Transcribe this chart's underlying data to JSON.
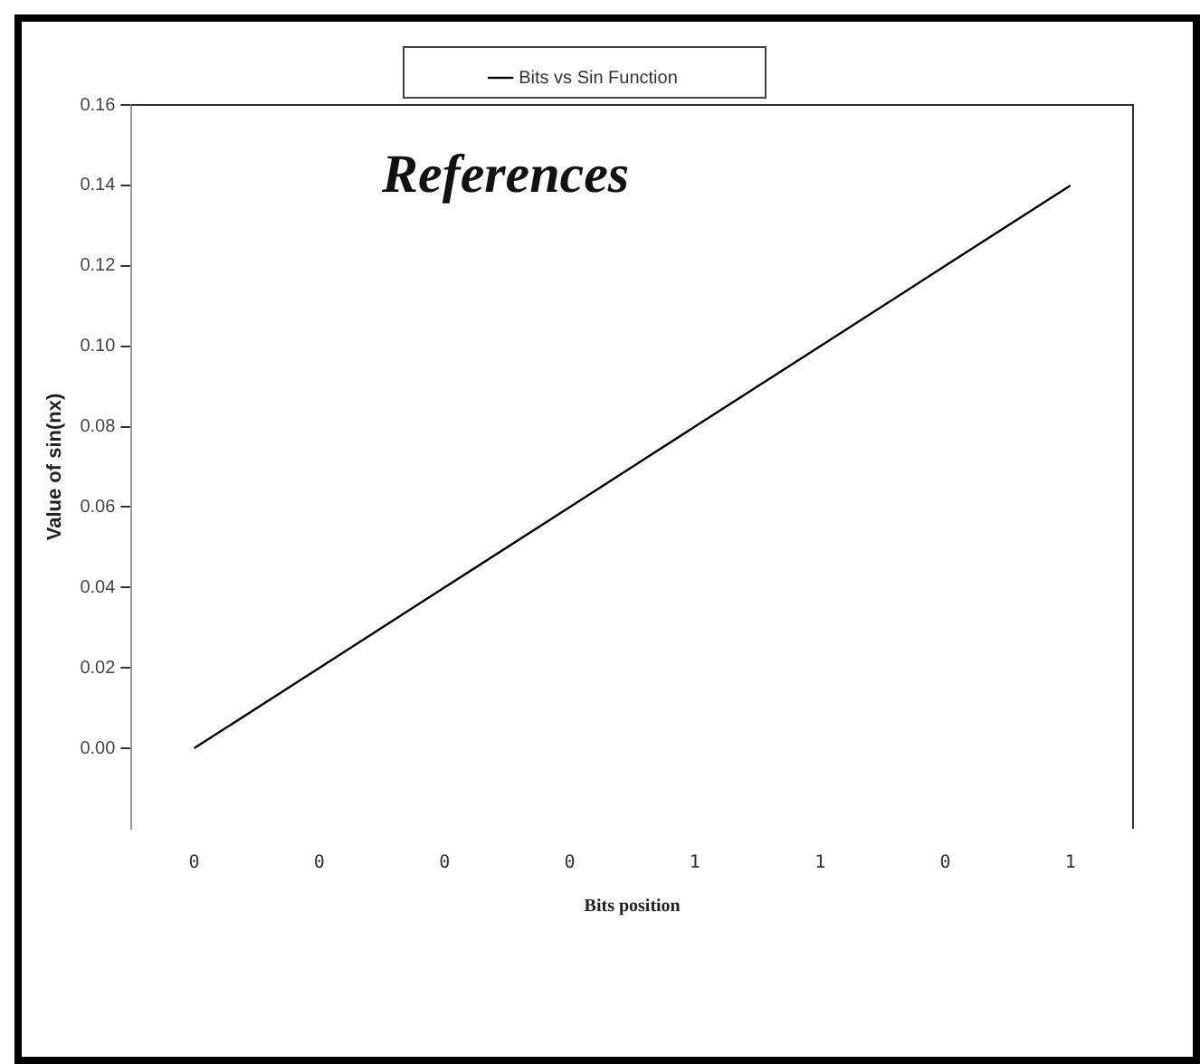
{
  "chart_data": {
    "type": "line",
    "xlabel": "Bits position",
    "ylabel": "Value of sin(nx)",
    "annotations": [
      "References"
    ],
    "categories": [
      "0",
      "0",
      "0",
      "0",
      "1",
      "1",
      "0",
      "1"
    ],
    "series": [
      {
        "name": "Bits vs Sin Function",
        "color": "#000000",
        "values": [
          0,
          0.02,
          0.04,
          0.06,
          0.08,
          0.1,
          0.12,
          0.14
        ]
      }
    ],
    "ylim": [
      -0.02,
      0.16
    ],
    "yticks": [
      {
        "value": 0,
        "label": "0.00"
      },
      0.02,
      0.04,
      0.06,
      0.08,
      {
        "value": 0.1,
        "label": "0.10"
      },
      0.12,
      0.14,
      0.16
    ],
    "grid": false,
    "legend": "top",
    "marker": "none",
    "line_style": "solid"
  }
}
